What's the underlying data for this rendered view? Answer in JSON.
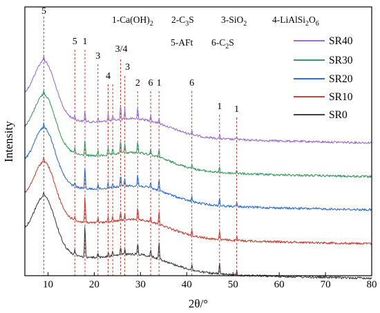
{
  "chart_data": {
    "type": "line",
    "title": "",
    "xlabel": "2θ/°",
    "ylabel": "Intensity",
    "xlim": [
      5,
      80
    ],
    "xticks": [
      10,
      20,
      30,
      40,
      50,
      60,
      70,
      80
    ],
    "y_ticks_shown": false,
    "grid": false,
    "legend_placement": "right",
    "phase_key": {
      "row1": [
        {
          "label": "1-Ca(OH)",
          "sub": "2"
        },
        {
          "label": "2-C",
          "sub": "3",
          "post": "S"
        },
        {
          "label": "3-SiO",
          "sub": "2"
        },
        {
          "label": "4-LiAlSi",
          "sub": "2",
          "post": "O",
          "sub2": "6"
        }
      ],
      "row2": [
        {
          "label": "5-AFt"
        },
        {
          "label": "6-C",
          "sub": "2",
          "post": "S"
        }
      ]
    },
    "series": [
      {
        "name": "SR40",
        "color": "#9b6fd0",
        "offset": 4
      },
      {
        "name": "SR30",
        "color": "#3c9a5f",
        "offset": 3
      },
      {
        "name": "SR20",
        "color": "#2f6fcf",
        "offset": 2
      },
      {
        "name": "SR10",
        "color": "#c8453a",
        "offset": 1
      },
      {
        "name": "SR0",
        "color": "#404040",
        "offset": 0
      }
    ],
    "peak_markers": [
      {
        "x": 9.1,
        "label": "5"
      },
      {
        "x": 15.8,
        "label": "5"
      },
      {
        "x": 18.0,
        "label": "1"
      },
      {
        "x": 20.8,
        "label": "3"
      },
      {
        "x": 23.0,
        "label": "4"
      },
      {
        "x": 24.0,
        "label": ""
      },
      {
        "x": 25.7,
        "label": "3/4"
      },
      {
        "x": 26.6,
        "label": "3"
      },
      {
        "x": 29.4,
        "label": "2"
      },
      {
        "x": 32.2,
        "label": "6"
      },
      {
        "x": 34.0,
        "label": "1"
      },
      {
        "x": 41.1,
        "label": "6"
      },
      {
        "x": 47.1,
        "label": "1"
      },
      {
        "x": 50.8,
        "label": "1"
      }
    ],
    "peak_color": "#c0392b"
  }
}
